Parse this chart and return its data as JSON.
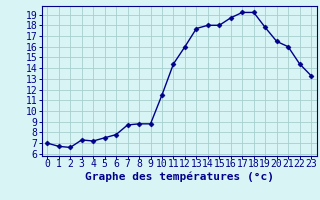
{
  "x": [
    0,
    1,
    2,
    3,
    4,
    5,
    6,
    7,
    8,
    9,
    10,
    11,
    12,
    13,
    14,
    15,
    16,
    17,
    18,
    19,
    20,
    21,
    22,
    23
  ],
  "y": [
    7.0,
    6.7,
    6.6,
    7.3,
    7.2,
    7.5,
    7.8,
    8.7,
    8.8,
    8.8,
    11.5,
    14.4,
    16.0,
    17.7,
    18.0,
    18.0,
    18.7,
    19.2,
    19.2,
    17.8,
    16.5,
    16.0,
    14.4,
    13.3
  ],
  "xlabel": "Graphe des températures (°c)",
  "ylim": [
    5.8,
    19.8
  ],
  "xlim": [
    -0.5,
    23.5
  ],
  "yticks": [
    6,
    7,
    8,
    9,
    10,
    11,
    12,
    13,
    14,
    15,
    16,
    17,
    18,
    19
  ],
  "xticks": [
    0,
    1,
    2,
    3,
    4,
    5,
    6,
    7,
    8,
    9,
    10,
    11,
    12,
    13,
    14,
    15,
    16,
    17,
    18,
    19,
    20,
    21,
    22,
    23
  ],
  "xtick_labels": [
    "0",
    "1",
    "2",
    "3",
    "4",
    "5",
    "6",
    "7",
    "8",
    "9",
    "10",
    "11",
    "12",
    "13",
    "14",
    "15",
    "16",
    "17",
    "18",
    "19",
    "20",
    "21",
    "22",
    "23"
  ],
  "line_color": "#00008b",
  "marker": "D",
  "marker_size": 2.5,
  "bg_color": "#d8f4f4",
  "grid_color": "#a8cece",
  "xlabel_color": "#00008b",
  "xlabel_fontsize": 8,
  "tick_fontsize": 7,
  "line_width": 1.0,
  "bottom_bg": "#d0e8f0"
}
